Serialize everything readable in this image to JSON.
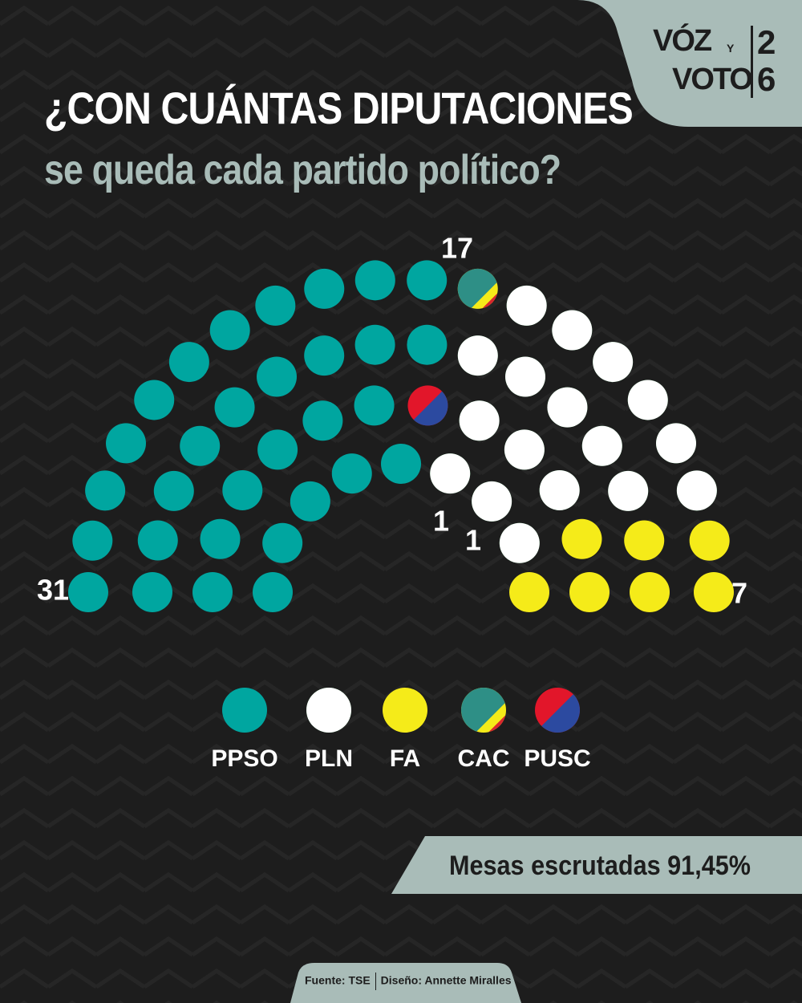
{
  "header": {
    "title": "¿CON CUÁNTAS DIPUTACIONES",
    "subtitle": "se queda cada partido político?"
  },
  "logo": {
    "voz": "VÓZ",
    "y": "Y",
    "voto": "VOTO",
    "year_top": "2",
    "year_bottom": "6"
  },
  "colors": {
    "background": "#1d1d1d",
    "accent": "#a9bcb8",
    "PPSO": "#00a6a0",
    "PLN_green": "#1e9b3c",
    "FA": "#f5eb19",
    "CAC_yellow": "#f5eb19",
    "CAC_teal": "#2e8f86",
    "CAC_red": "#d7272e",
    "PUSC_red": "#e2162a",
    "PUSC_blue": "#2c4aa0"
  },
  "chart_data": {
    "type": "parliament",
    "total_seats": 57,
    "series": [
      {
        "name": "PPSO",
        "value": 31
      },
      {
        "name": "PLN",
        "value": 17
      },
      {
        "name": "FA",
        "value": 7
      },
      {
        "name": "CAC",
        "value": 1
      },
      {
        "name": "PUSC",
        "value": 1
      }
    ],
    "data_labels": [
      "31",
      "17",
      "1",
      "1",
      "7"
    ],
    "legend": [
      "PPSO",
      "PLN",
      "FA",
      "CAC",
      "PUSC"
    ],
    "legend_position": "bottom"
  },
  "status": {
    "text": "Mesas escrutadas 91,45%"
  },
  "footer": {
    "source": "Fuente: TSE",
    "design": "Diseño: Annette Miralles"
  }
}
